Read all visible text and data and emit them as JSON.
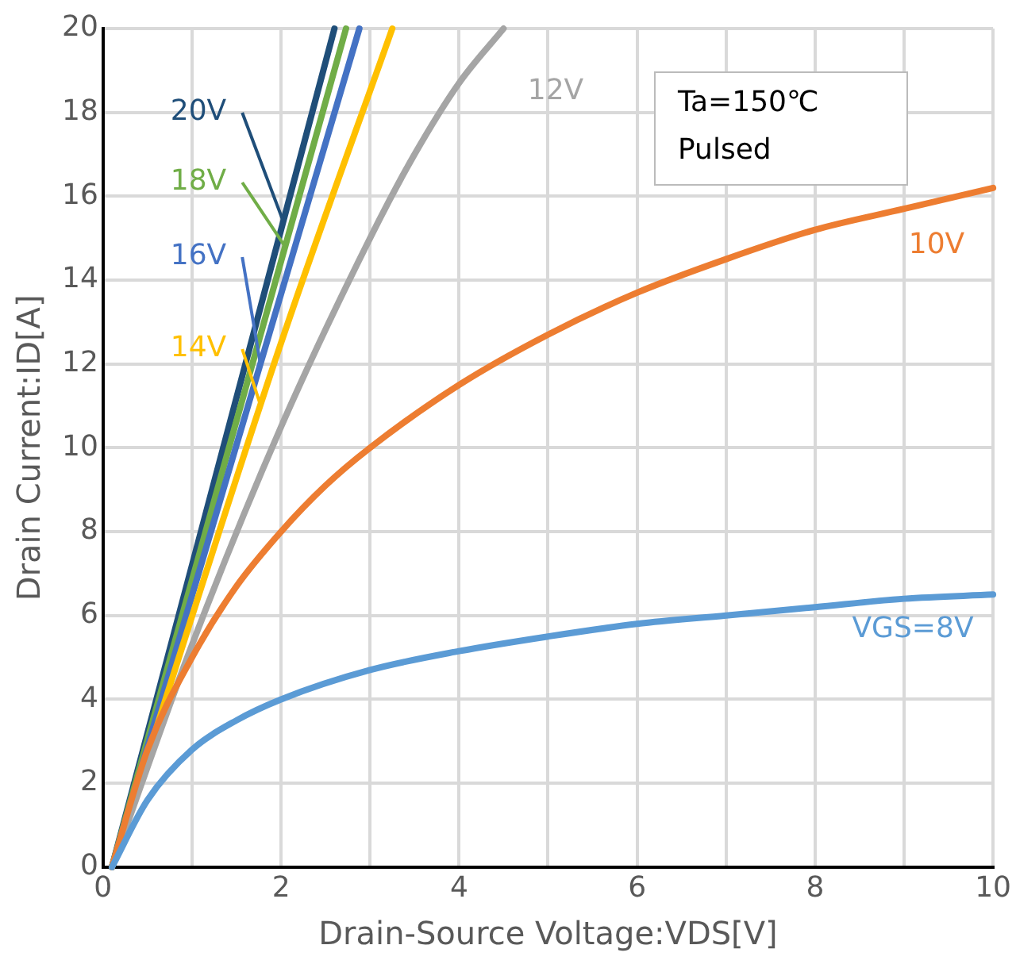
{
  "chart_data": {
    "type": "line",
    "xlabel": "Drain-Source Voltage:VDS[V]",
    "ylabel": "Drain Current:ID[A]",
    "xlim": [
      0,
      10
    ],
    "ylim": [
      0,
      20
    ],
    "xticks": [
      0,
      {
        "value": 1,
        "label": null
      },
      2,
      {
        "value": 3,
        "label": null
      },
      4,
      {
        "value": 5,
        "label": null
      },
      6,
      {
        "value": 7,
        "label": null
      },
      8,
      {
        "value": 9,
        "label": null
      },
      10
    ],
    "yticks": [
      0,
      2,
      4,
      6,
      8,
      10,
      12,
      14,
      16,
      18,
      20
    ],
    "grid": true,
    "legend": false,
    "marker": "none",
    "line_style": "solid",
    "annotations": [
      "Ta=150℃",
      "Pulsed"
    ],
    "series": [
      {
        "name": "VGS=8V",
        "color": "#5b9bd5",
        "x": [
          0.1,
          0.5,
          1,
          1.5,
          2,
          3,
          4,
          5,
          6,
          7,
          8,
          9,
          10
        ],
        "values": [
          0,
          1.6,
          2.8,
          3.5,
          4,
          4.7,
          5.15,
          5.5,
          5.8,
          6,
          6.2,
          6.4,
          6.5
        ]
      },
      {
        "name": "10V",
        "color": "#ed7d31",
        "x": [
          0.1,
          0.5,
          1,
          1.5,
          2,
          2.5,
          3,
          4,
          5,
          6,
          7,
          8,
          9,
          10
        ],
        "values": [
          0,
          2.8,
          5,
          6.7,
          8,
          9.1,
          10,
          11.5,
          12.7,
          13.7,
          14.5,
          15.2,
          15.7,
          16.2
        ]
      },
      {
        "name": "12V",
        "color": "#a5a5a5",
        "x": [
          0.1,
          1,
          2,
          3,
          3.5,
          4,
          4.5
        ],
        "values": [
          0,
          5.3,
          10.5,
          15,
          17,
          18.7,
          20
        ]
      },
      {
        "name": "14V",
        "color": "#ffc000",
        "x": [
          0.1,
          2,
          3.25
        ],
        "values": [
          0,
          12.5,
          20
        ]
      },
      {
        "name": "16V",
        "color": "#4472c4",
        "x": [
          0.1,
          2.88
        ],
        "values": [
          0,
          20
        ]
      },
      {
        "name": "18V",
        "color": "#70ad47",
        "x": [
          0.1,
          2.73
        ],
        "values": [
          0,
          20
        ]
      },
      {
        "name": "20V",
        "color": "#1f4e79",
        "x": [
          0.1,
          2.6
        ],
        "values": [
          0,
          20
        ]
      }
    ]
  }
}
